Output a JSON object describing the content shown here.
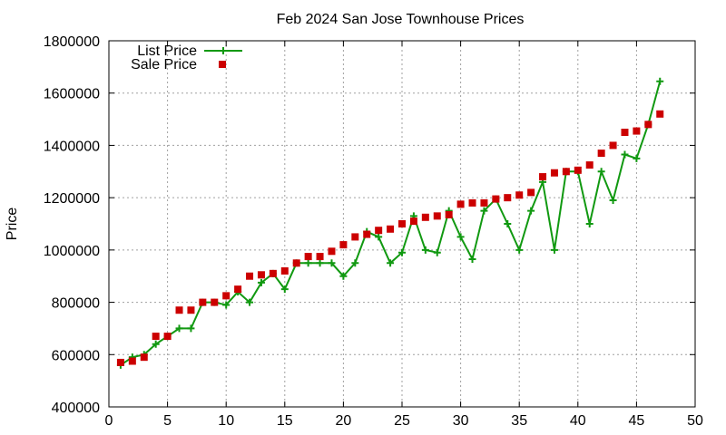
{
  "chart_data": {
    "type": "line",
    "title": "Feb 2024 San Jose Townhouse Prices",
    "xlabel": "",
    "ylabel": "Price",
    "xlim": [
      0,
      50
    ],
    "ylim": [
      400000,
      1800000
    ],
    "xticks": [
      "0",
      "5",
      "10",
      "15",
      "20",
      "25",
      "30",
      "35",
      "40",
      "45",
      "50"
    ],
    "yticks": [
      "400000",
      "600000",
      "800000",
      "1000000",
      "1200000",
      "1400000",
      "1600000",
      "1800000"
    ],
    "grid": true,
    "legend_position": "top-left",
    "series": [
      {
        "name": "List Price",
        "style": "line-with-plus-markers",
        "color": "#119911",
        "x": [
          1,
          2,
          3,
          4,
          5,
          6,
          7,
          8,
          9,
          10,
          11,
          12,
          13,
          14,
          15,
          16,
          17,
          18,
          19,
          20,
          21,
          22,
          23,
          24,
          25,
          26,
          27,
          28,
          29,
          30,
          31,
          32,
          33,
          34,
          35,
          36,
          37,
          38,
          39,
          40,
          41,
          42,
          43,
          44,
          45,
          46,
          47
        ],
        "values": [
          560000,
          590000,
          600000,
          640000,
          670000,
          700000,
          700000,
          800000,
          800000,
          790000,
          840000,
          800000,
          875000,
          910000,
          850000,
          950000,
          950000,
          950000,
          950000,
          900000,
          950000,
          1070000,
          1050000,
          950000,
          990000,
          1130000,
          1000000,
          990000,
          1150000,
          1050000,
          965000,
          1150000,
          1195000,
          1100000,
          1000000,
          1150000,
          1260000,
          1000000,
          1300000,
          1300000,
          1100000,
          1300000,
          1190000,
          1365000,
          1350000,
          1480000,
          1645000
        ]
      },
      {
        "name": "Sale Price",
        "style": "square-markers",
        "color": "#cc0000",
        "x": [
          1,
          2,
          3,
          4,
          5,
          6,
          7,
          8,
          9,
          10,
          11,
          12,
          13,
          14,
          15,
          16,
          17,
          18,
          19,
          20,
          21,
          22,
          23,
          24,
          25,
          26,
          27,
          28,
          29,
          30,
          31,
          32,
          33,
          34,
          35,
          36,
          37,
          38,
          39,
          40,
          41,
          42,
          43,
          44,
          45,
          46,
          47
        ],
        "values": [
          570000,
          575000,
          590000,
          670000,
          670000,
          770000,
          770000,
          800000,
          800000,
          825000,
          850000,
          900000,
          905000,
          910000,
          920000,
          950000,
          975000,
          975000,
          995000,
          1020000,
          1050000,
          1060000,
          1075000,
          1080000,
          1100000,
          1110000,
          1125000,
          1130000,
          1135000,
          1175000,
          1180000,
          1180000,
          1195000,
          1200000,
          1210000,
          1220000,
          1280000,
          1295000,
          1300000,
          1305000,
          1325000,
          1370000,
          1400000,
          1450000,
          1455000,
          1480000,
          1520000
        ]
      }
    ]
  }
}
